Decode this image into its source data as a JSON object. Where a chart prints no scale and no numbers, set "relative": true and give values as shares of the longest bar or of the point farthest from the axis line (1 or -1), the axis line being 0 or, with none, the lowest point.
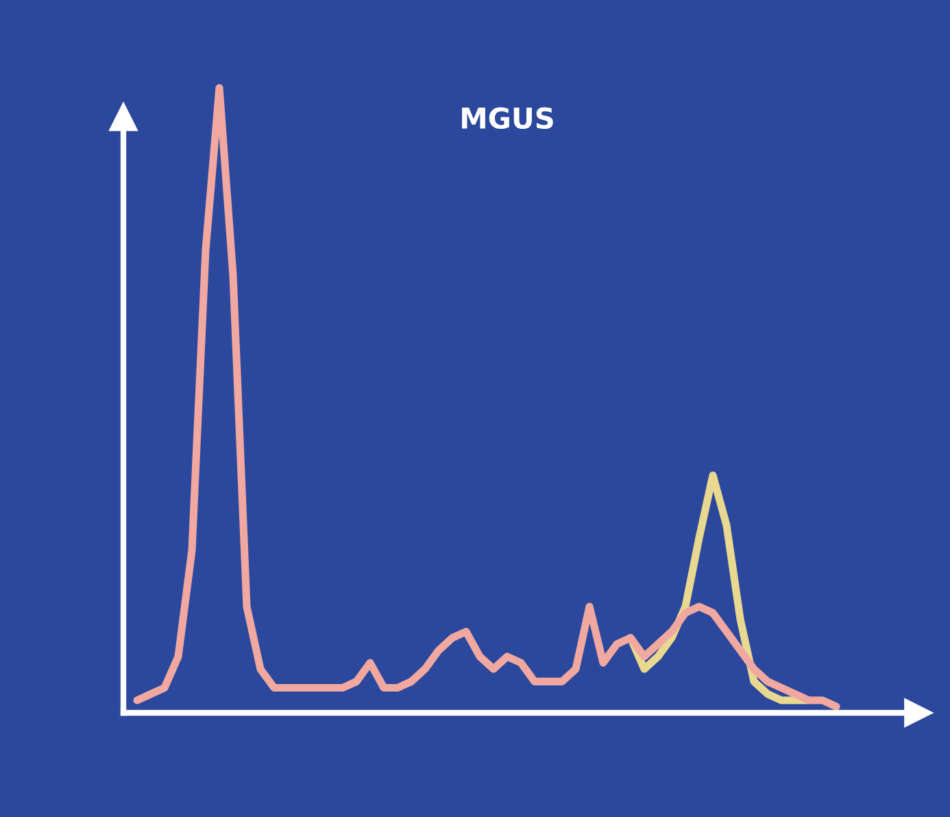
{
  "chart_data": {
    "type": "line",
    "title": "MGUS",
    "relative": true,
    "legend": false,
    "grid": false,
    "marker": "none",
    "line_style": "solid",
    "categories": [
      null,
      null,
      null,
      null,
      null,
      null,
      null,
      null,
      null,
      null,
      null,
      null,
      null,
      null,
      null,
      null,
      null,
      null,
      null,
      null,
      null,
      null,
      null,
      null,
      null,
      null,
      null,
      null,
      null,
      null,
      null,
      null,
      null,
      null,
      null,
      null,
      null,
      null,
      null,
      null,
      null,
      null,
      null,
      null,
      null,
      null,
      null,
      null,
      null,
      null,
      null,
      null,
      null,
      null,
      null,
      null,
      null,
      null
    ],
    "series": [
      {
        "color": "#e8d890",
        "values": [
          null,
          null,
          null,
          null,
          null,
          null,
          null,
          null,
          null,
          null,
          null,
          null,
          null,
          null,
          null,
          null,
          null,
          null,
          null,
          null,
          null,
          null,
          null,
          null,
          null,
          null,
          null,
          null,
          null,
          null,
          null,
          null,
          null,
          null,
          null,
          null,
          0.12,
          0.07,
          0.09,
          0.12,
          0.17,
          0.28,
          0.38,
          0.3,
          0.15,
          0.05,
          0.03,
          0.02,
          0.02,
          0.02,
          null,
          null,
          null,
          null,
          null,
          null,
          null,
          null
        ]
      },
      {
        "color": "#f0a8a0",
        "values": [
          0.02,
          0.03,
          0.04,
          0.09,
          0.26,
          0.74,
          1.0,
          0.7,
          0.17,
          0.07,
          0.04,
          0.04,
          0.04,
          0.04,
          0.04,
          0.04,
          0.05,
          0.08,
          0.04,
          0.04,
          0.05,
          0.07,
          0.1,
          0.12,
          0.13,
          0.09,
          0.07,
          0.09,
          0.08,
          0.05,
          0.05,
          0.05,
          0.07,
          0.17,
          0.08,
          0.11,
          0.12,
          0.09,
          0.11,
          0.13,
          0.16,
          0.17,
          0.16,
          0.13,
          0.1,
          0.07,
          0.05,
          0.04,
          0.03,
          0.02,
          0.02,
          0.01,
          null,
          null,
          null,
          null,
          null,
          null
        ]
      }
    ]
  }
}
